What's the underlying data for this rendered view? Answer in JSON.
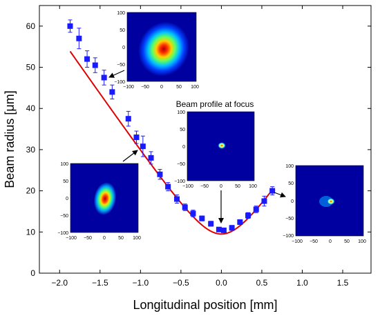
{
  "chart_data": {
    "type": "scatter",
    "xlabel": "Longitudinal position [mm]",
    "ylabel": "Beam radius [μm]",
    "xlim": [
      -2.25,
      1.85
    ],
    "ylim": [
      0,
      65
    ],
    "x_ticks": [
      "−2.0",
      "−1.5",
      "−1.0",
      "−0.5",
      "0.0",
      "0.5",
      "1.0",
      "1.5"
    ],
    "x_tick_values": [
      -2.0,
      -1.5,
      -1.0,
      -0.5,
      0.0,
      0.5,
      1.0,
      1.5
    ],
    "y_ticks": [
      "0",
      "10",
      "20",
      "30",
      "40",
      "50",
      "60"
    ],
    "y_tick_values": [
      0,
      10,
      20,
      30,
      40,
      50,
      60
    ],
    "grid": false,
    "colors": {
      "marker": "#1a1aff",
      "fit": "#e00000",
      "arrow": "#000000"
    },
    "series": [
      {
        "kind": "markers_with_errorbars",
        "x": [
          -1.87,
          -1.76,
          -1.66,
          -1.56,
          -1.45,
          -1.35,
          -1.15,
          -1.05,
          -0.97,
          -0.87,
          -0.76,
          -0.66,
          -0.55,
          -0.45,
          -0.35,
          -0.24,
          -0.13,
          -0.03,
          0.03,
          0.13,
          0.23,
          0.33,
          0.43,
          0.53,
          0.63
        ],
        "y": [
          60,
          57,
          52,
          50.5,
          47.5,
          44,
          37.5,
          33,
          30.8,
          28,
          24,
          21,
          18,
          16,
          14.5,
          13.3,
          12,
          10.6,
          10.4,
          11,
          12.4,
          14,
          15.5,
          17.5,
          20
        ],
        "err": [
          1.5,
          2.5,
          2,
          1.8,
          1.8,
          1.7,
          1.8,
          1.5,
          2.5,
          1.5,
          1.2,
          1,
          1,
          0.8,
          0.8,
          0.6,
          0.6,
          0.5,
          0.5,
          0.6,
          0.6,
          0.7,
          0.8,
          1.2,
          1
        ]
      },
      {
        "kind": "fit_curve",
        "w0": 9.5,
        "zR": 0.335,
        "x_range": [
          -1.87,
          0.63
        ]
      }
    ],
    "annotations": [
      {
        "text": "Beam profile at focus"
      }
    ],
    "insets": [
      {
        "name": "inset-upper-left",
        "ticks": [
          "100",
          "50",
          "0",
          "−50",
          "−100",
          "−100",
          "−50",
          "0",
          "50",
          "100"
        ],
        "points_to": {
          "x": -1.45,
          "y": 47.5
        }
      },
      {
        "name": "inset-lower-left",
        "ticks": [
          "100",
          "50",
          "0",
          "−50",
          "−100",
          "−100",
          "−50",
          "0",
          "50",
          "100"
        ],
        "points_to": {
          "x": -0.97,
          "y": 30.8
        }
      },
      {
        "name": "inset-focus",
        "ticks": [
          "100",
          "50",
          "0",
          "−50",
          "−100",
          "−100",
          "−50",
          "0",
          "50",
          "100"
        ],
        "points_to": {
          "x": 0.0,
          "y": 10.5
        }
      },
      {
        "name": "inset-right",
        "ticks": [
          "100",
          "50",
          "0",
          "−50",
          "−100",
          "−100",
          "−50",
          "0",
          "50",
          "100"
        ],
        "points_to": {
          "x": 0.63,
          "y": 20
        }
      }
    ]
  }
}
